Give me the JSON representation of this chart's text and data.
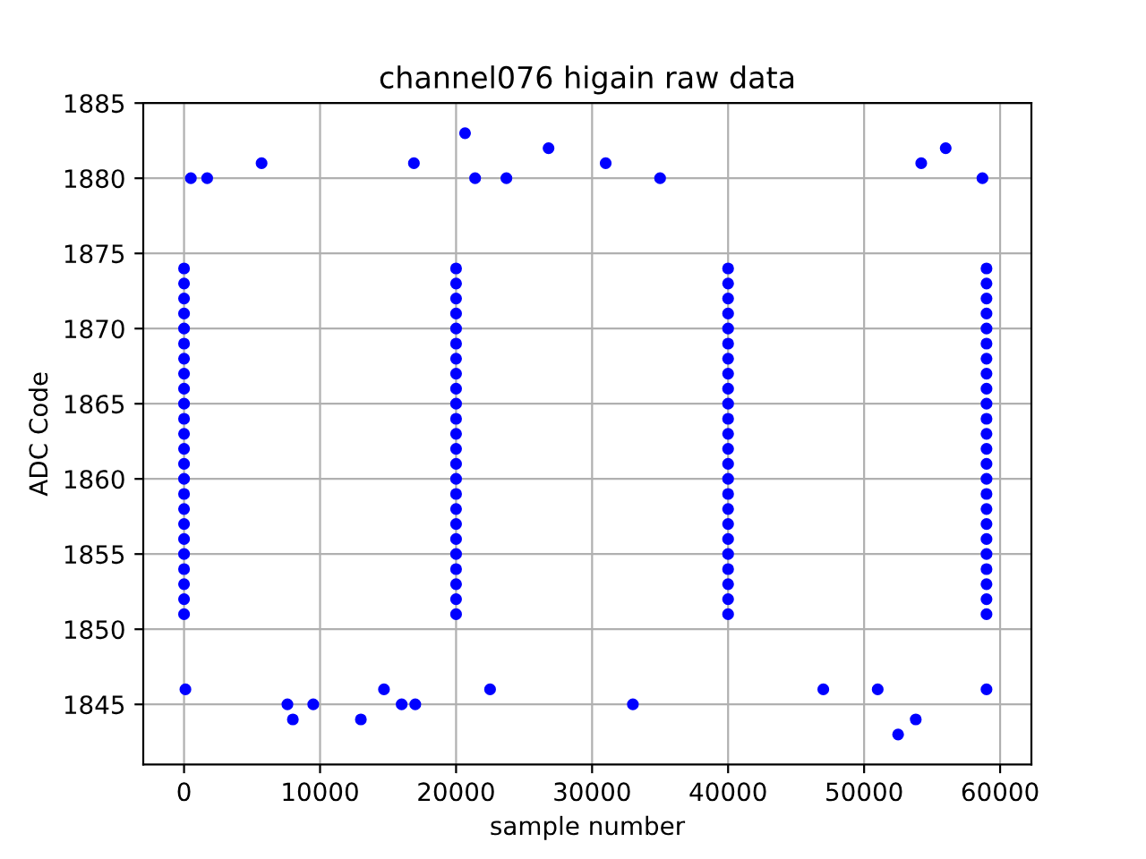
{
  "chart_data": {
    "type": "scatter",
    "title": "channel076 higain raw data",
    "xlabel": "sample number",
    "ylabel": "ADC Code",
    "xlim": [
      -3000,
      62300
    ],
    "ylim": [
      1841,
      1885
    ],
    "xticks": [
      0,
      10000,
      20000,
      30000,
      40000,
      50000,
      60000
    ],
    "yticks": [
      1845,
      1850,
      1855,
      1860,
      1865,
      1870,
      1875,
      1880,
      1885
    ],
    "grid": true,
    "marker": "circle",
    "series": [
      {
        "color": "#0000ff",
        "x": [
          0,
          20000,
          40000,
          59000,
          0,
          20000,
          40000,
          59000,
          0,
          20000,
          40000,
          59000,
          0,
          20000,
          40000,
          59000,
          0,
          20000,
          40000,
          59000,
          0,
          20000,
          40000,
          59000,
          0,
          20000,
          40000,
          59000,
          0,
          20000,
          40000,
          59000,
          0,
          20000,
          40000,
          59000,
          0,
          20000,
          40000,
          59000,
          0,
          20000,
          40000,
          59000,
          0,
          20000,
          40000,
          59000,
          0,
          20000,
          40000,
          59000,
          0,
          20000,
          40000,
          59000,
          0,
          20000,
          40000,
          59000,
          0,
          20000,
          40000,
          59000,
          0,
          20000,
          40000,
          59000,
          0,
          20000,
          40000,
          59000,
          0,
          20000,
          40000,
          59000,
          0,
          20000,
          40000,
          59000,
          0,
          20000,
          40000,
          59000,
          0,
          20000,
          40000,
          59000,
          0,
          20000,
          40000,
          59000,
          0,
          20000,
          40000,
          59000,
          20660,
          26800,
          56000,
          5700,
          16900,
          31000,
          54200,
          500,
          1700,
          21400,
          23700,
          35000,
          58700,
          52500,
          8000,
          13000,
          53800,
          7600,
          9500,
          16000,
          17000,
          33000,
          100,
          14700,
          22500,
          47000,
          51000,
          59000
        ],
        "values": [
          1851,
          1851,
          1851,
          1851,
          1852,
          1852,
          1852,
          1852,
          1853,
          1853,
          1853,
          1853,
          1854,
          1854,
          1854,
          1854,
          1855,
          1855,
          1855,
          1855,
          1856,
          1856,
          1856,
          1856,
          1857,
          1857,
          1857,
          1857,
          1858,
          1858,
          1858,
          1858,
          1859,
          1859,
          1859,
          1859,
          1860,
          1860,
          1860,
          1860,
          1861,
          1861,
          1861,
          1861,
          1862,
          1862,
          1862,
          1862,
          1863,
          1863,
          1863,
          1863,
          1864,
          1864,
          1864,
          1864,
          1865,
          1865,
          1865,
          1865,
          1866,
          1866,
          1866,
          1866,
          1867,
          1867,
          1867,
          1867,
          1868,
          1868,
          1868,
          1868,
          1869,
          1869,
          1869,
          1869,
          1870,
          1870,
          1870,
          1870,
          1871,
          1871,
          1871,
          1871,
          1872,
          1872,
          1872,
          1872,
          1873,
          1873,
          1873,
          1873,
          1874,
          1874,
          1874,
          1874,
          1883,
          1882,
          1882,
          1881,
          1881,
          1881,
          1881,
          1880,
          1880,
          1880,
          1880,
          1880,
          1880,
          1843,
          1844,
          1844,
          1844,
          1845,
          1845,
          1845,
          1845,
          1845,
          1846,
          1846,
          1846,
          1846,
          1846,
          1846
        ]
      }
    ]
  }
}
